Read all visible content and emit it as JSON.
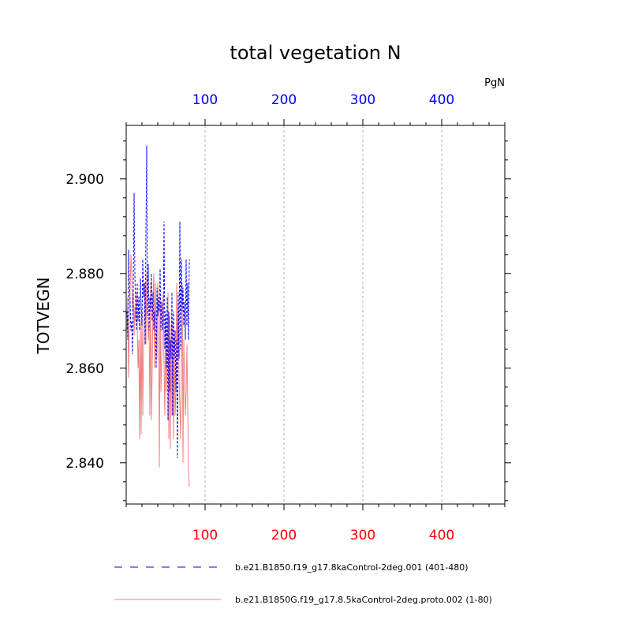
{
  "chart_data": {
    "type": "line",
    "title": "total vegetation N",
    "ylabel": "TOTVEGN",
    "units": "PgN",
    "xlim": [
      0,
      480
    ],
    "ylim": [
      2.8313,
      2.9113
    ],
    "yticks": [
      "2.840",
      "2.860",
      "2.880",
      "2.900"
    ],
    "ytick_values": [
      2.84,
      2.86,
      2.88,
      2.9
    ],
    "xticks_bottom": [
      "100",
      "200",
      "300",
      "400"
    ],
    "xticks_top": [
      "100",
      "200",
      "300",
      "400"
    ],
    "xtick_values": [
      100,
      200,
      300,
      400
    ],
    "grid": "x-dashed",
    "colors": {
      "top_axis": "#0000ff",
      "bottom_axis": "#ff0000"
    },
    "series": [
      {
        "name": "b.e21.B1850.f19_g17.8kaControl-2deg.001 (401-480)",
        "color": "#0000ff",
        "style": "dashed",
        "x": [
          1,
          2,
          3,
          4,
          5,
          6,
          7,
          8,
          9,
          10,
          11,
          12,
          13,
          14,
          15,
          16,
          17,
          18,
          19,
          20,
          21,
          22,
          23,
          24,
          25,
          26,
          27,
          28,
          29,
          30,
          31,
          32,
          33,
          34,
          35,
          36,
          37,
          38,
          39,
          40,
          41,
          42,
          43,
          44,
          45,
          46,
          47,
          48,
          49,
          50,
          51,
          52,
          53,
          54,
          55,
          56,
          57,
          58,
          59,
          60,
          61,
          62,
          63,
          64,
          65,
          66,
          67,
          68,
          69,
          70,
          71,
          72,
          73,
          74,
          75,
          76,
          77,
          78,
          79,
          80
        ],
        "values": [
          2.872,
          2.866,
          2.885,
          2.878,
          2.874,
          2.868,
          2.87,
          2.863,
          2.877,
          2.897,
          2.88,
          2.872,
          2.868,
          2.878,
          2.87,
          2.875,
          2.868,
          2.879,
          2.873,
          2.869,
          2.883,
          2.875,
          2.878,
          2.865,
          2.888,
          2.907,
          2.871,
          2.882,
          2.868,
          2.875,
          2.872,
          2.88,
          2.87,
          2.876,
          2.868,
          2.872,
          2.868,
          2.86,
          2.877,
          2.871,
          2.875,
          2.872,
          2.881,
          2.868,
          2.874,
          2.868,
          2.87,
          2.891,
          2.864,
          2.872,
          2.86,
          2.875,
          2.849,
          2.872,
          2.855,
          2.866,
          2.862,
          2.876,
          2.85,
          2.872,
          2.862,
          2.868,
          2.855,
          2.866,
          2.841,
          2.876,
          2.862,
          2.891,
          2.864,
          2.883,
          2.872,
          2.877,
          2.869,
          2.874,
          2.866,
          2.883,
          2.869,
          2.878,
          2.866,
          2.883
        ]
      },
      {
        "name": "b.e21.B1850G.f19_g17.8.5kaControl-2deg.proto.002 (1-80)",
        "color": "#f08080",
        "style": "solid",
        "x": [
          1,
          2,
          3,
          4,
          5,
          6,
          7,
          8,
          9,
          10,
          11,
          12,
          13,
          14,
          15,
          16,
          17,
          18,
          19,
          20,
          21,
          22,
          23,
          24,
          25,
          26,
          27,
          28,
          29,
          30,
          31,
          32,
          33,
          34,
          35,
          36,
          37,
          38,
          39,
          40,
          41,
          42,
          43,
          44,
          45,
          46,
          47,
          48,
          49,
          50,
          51,
          52,
          53,
          54,
          55,
          56,
          57,
          58,
          59,
          60,
          61,
          62,
          63,
          64,
          65,
          66,
          67,
          68,
          69,
          70,
          71,
          72,
          73,
          74,
          75,
          76,
          77,
          78,
          79,
          80
        ],
        "values": [
          2.868,
          2.875,
          2.858,
          2.87,
          2.877,
          2.884,
          2.88,
          2.872,
          2.876,
          2.867,
          2.873,
          2.87,
          2.876,
          2.87,
          2.86,
          2.866,
          2.845,
          2.87,
          2.846,
          2.872,
          2.85,
          2.865,
          2.874,
          2.878,
          2.865,
          2.88,
          2.875,
          2.866,
          2.87,
          2.85,
          2.878,
          2.849,
          2.86,
          2.875,
          2.88,
          2.86,
          2.878,
          2.869,
          2.862,
          2.878,
          2.871,
          2.839,
          2.874,
          2.855,
          2.862,
          2.87,
          2.876,
          2.86,
          2.85,
          2.87,
          2.855,
          2.862,
          2.876,
          2.845,
          2.871,
          2.843,
          2.869,
          2.85,
          2.87,
          2.845,
          2.866,
          2.85,
          2.855,
          2.878,
          2.862,
          2.874,
          2.858,
          2.852,
          2.845,
          2.86,
          2.878,
          2.84,
          2.866,
          2.858,
          2.85,
          2.855,
          2.865,
          2.852,
          2.838,
          2.835
        ]
      }
    ]
  }
}
